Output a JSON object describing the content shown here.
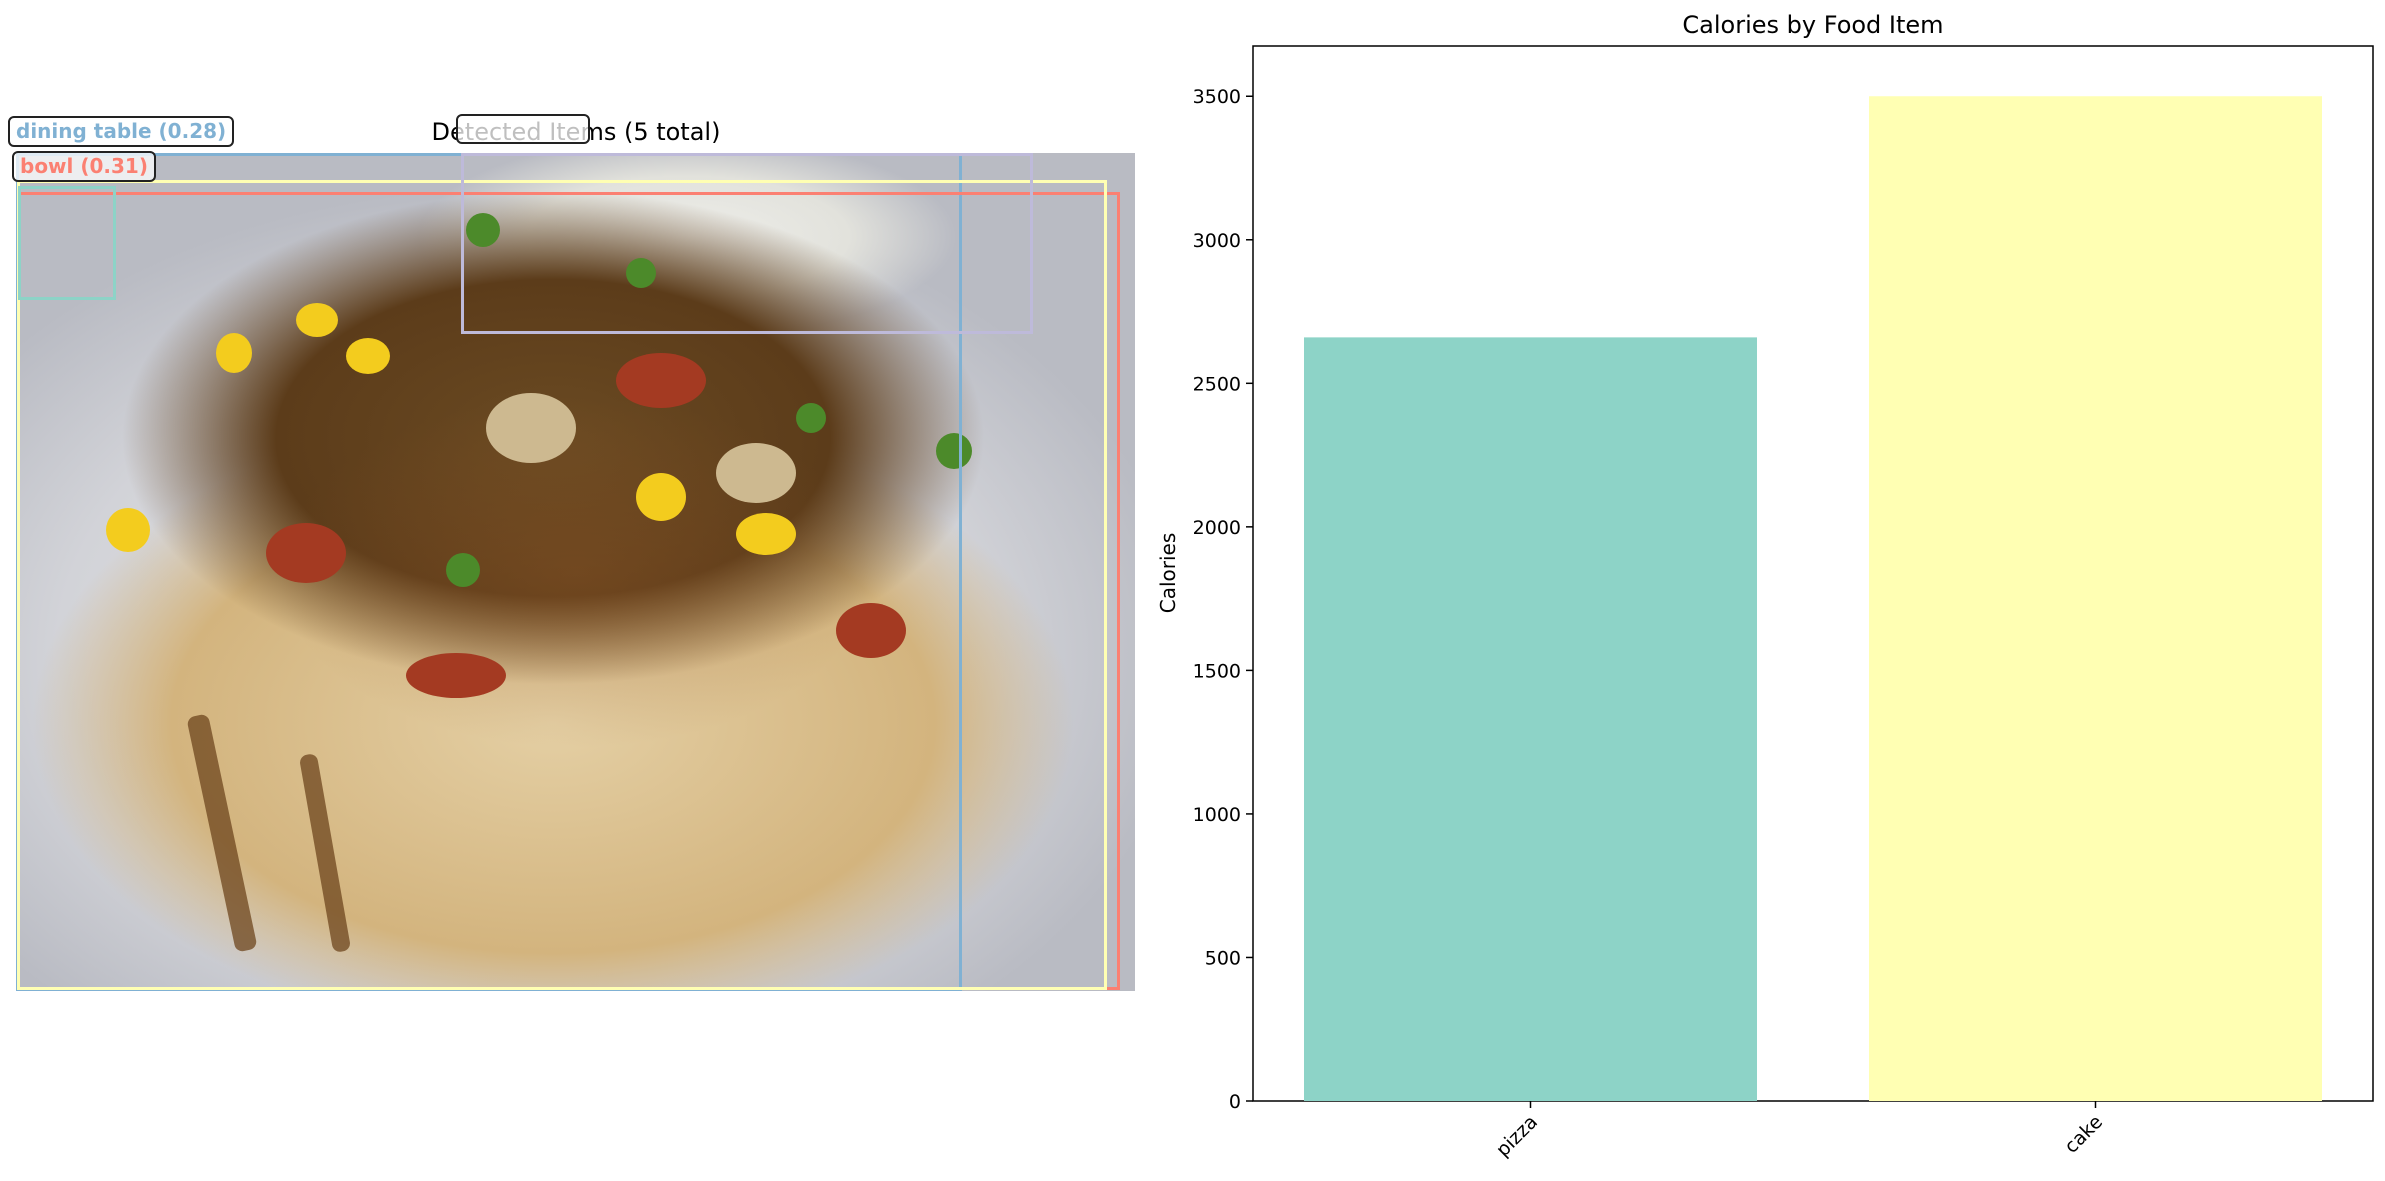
{
  "left_panel": {
    "title": "Detected Items (5 total)",
    "detections": [
      {
        "label": "bowl (0.31)",
        "color": "#fb8072"
      },
      {
        "label": "dining table (0.28)",
        "color": "#80b1d3"
      },
      {
        "label": "",
        "color": "#ffffb3"
      },
      {
        "label": "",
        "color": "#bebada"
      },
      {
        "label": "",
        "color": "#8dd3c7"
      }
    ]
  },
  "chart_data": {
    "type": "bar",
    "title": "Calories by Food Item",
    "xlabel": "",
    "ylabel": "Calories",
    "categories": [
      "pizza",
      "cake"
    ],
    "values": [
      2660,
      3500
    ],
    "colors": [
      "#8dd3c7",
      "#ffffb3"
    ],
    "ylim": [
      0,
      3675
    ],
    "yticks": [
      0,
      500,
      1000,
      1500,
      2000,
      2500,
      3000,
      3500
    ],
    "grid": false
  }
}
